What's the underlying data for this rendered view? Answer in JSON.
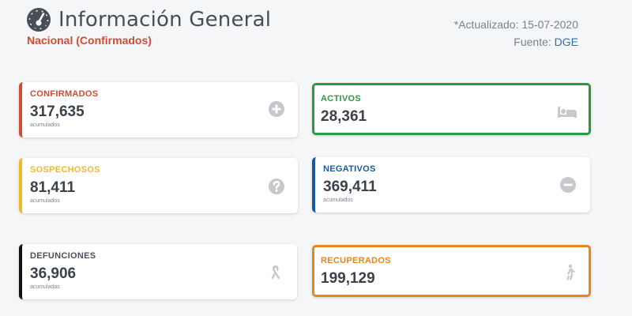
{
  "header": {
    "title": "Información General",
    "subtitle": "Nacional (Confirmados)",
    "updated_text": "*Actualizado: 15-07-2020",
    "source_label": "Fuente:",
    "source_link": "DGE"
  },
  "cards": {
    "confirmados": {
      "label": "CONFIRMADOS",
      "value": "317,635",
      "note": "acumulados",
      "icon": "plus-circle-icon",
      "color": "#d34b34"
    },
    "activos": {
      "label": "ACTIVOS",
      "value": "28,361",
      "icon": "bed-icon",
      "color": "#2a9a42"
    },
    "sospechosos": {
      "label": "SOSPECHOSOS",
      "value": "81,411",
      "note": "acumulados",
      "icon": "question-circle-icon",
      "color": "#efbb24"
    },
    "negativos": {
      "label": "NEGATIVOS",
      "value": "369,411",
      "note": "acumulados",
      "icon": "minus-circle-icon",
      "color": "#17599e"
    },
    "defunciones": {
      "label": "DEFUNCIONES",
      "value": "36,906",
      "note": "acumuladas",
      "icon": "ribbon-icon",
      "color": "#111111"
    },
    "recuperados": {
      "label": "RECUPERADOS",
      "value": "199,129",
      "icon": "walking-person-icon",
      "color": "#e8851c"
    }
  },
  "colors": {
    "icon_gray": "#c5c9ce",
    "title_gray": "#474e57"
  }
}
